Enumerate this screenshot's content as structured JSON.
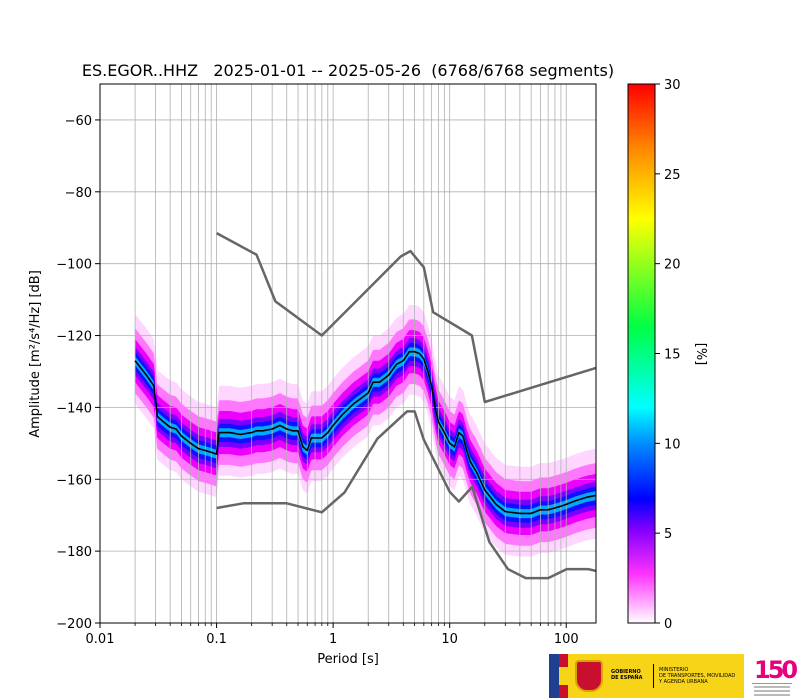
{
  "chart_data": {
    "type": "heatmap",
    "title": "ES.EGOR..HHZ   2025-01-01 -- 2025-05-26  (6768/6768 segments)",
    "xlabel": "Period [s]",
    "ylabel": "Amplitude [m²/s⁴/Hz] [dB]",
    "x_scale": "log",
    "xlim": [
      0.01,
      180
    ],
    "ylim": [
      -200,
      -50
    ],
    "x_ticks": [
      0.01,
      0.1,
      1,
      10,
      100
    ],
    "x_tick_labels": [
      "0.01",
      "0.1",
      "1",
      "10",
      "100"
    ],
    "y_ticks": [
      -200,
      -180,
      -160,
      -140,
      -120,
      -100,
      -80,
      -60
    ],
    "y_tick_labels": [
      "−200",
      "−180",
      "−160",
      "−140",
      "−120",
      "−100",
      "−80",
      "−60"
    ],
    "grid": true,
    "colorbar": {
      "label": "[%]",
      "range": [
        0,
        30
      ],
      "ticks": [
        0,
        5,
        10,
        15,
        20,
        25,
        30
      ],
      "tick_labels": [
        "0",
        "5",
        "10",
        "15",
        "20",
        "25",
        "30"
      ],
      "colormap": [
        "#ffffff",
        "#ff00ff",
        "#0000ff",
        "#00ffff",
        "#00ff00",
        "#ffff00",
        "#ff0000"
      ]
    },
    "series": [
      {
        "kind": "mode",
        "color": "#000000",
        "x": [
          0.02,
          0.025,
          0.029,
          0.031,
          0.035,
          0.04,
          0.045,
          0.05,
          0.06,
          0.07,
          0.08,
          0.09,
          0.1,
          0.105,
          0.13,
          0.16,
          0.2,
          0.22,
          0.25,
          0.3,
          0.35,
          0.4,
          0.45,
          0.5,
          0.55,
          0.6,
          0.65,
          0.8,
          0.9,
          1.0,
          1.2,
          1.5,
          2.0,
          2.2,
          2.5,
          3.0,
          3.5,
          4.0,
          4.5,
          5.0,
          5.5,
          6.0,
          6.5,
          7.0,
          7.5,
          8.0,
          9.0,
          10,
          11,
          12,
          13,
          14,
          15,
          17,
          20,
          25,
          30,
          40,
          50,
          60,
          70,
          80,
          90,
          100,
          120,
          150,
          180
        ],
        "y": [
          -127,
          -131,
          -134,
          -142.5,
          -144,
          -145.5,
          -146,
          -148,
          -150,
          -151.5,
          -152,
          -152.5,
          -153,
          -147,
          -147,
          -147.5,
          -147,
          -146.5,
          -146.5,
          -146,
          -145,
          -146,
          -146.5,
          -146.5,
          -151,
          -152,
          -148.5,
          -148.5,
          -147,
          -145,
          -142,
          -139,
          -136,
          -133,
          -133,
          -131,
          -128,
          -127,
          -124.5,
          -124.5,
          -125,
          -126.5,
          -130,
          -134,
          -140,
          -144,
          -147,
          -150,
          -151,
          -147,
          -148,
          -152,
          -155,
          -158,
          -163,
          -167,
          -169,
          -169.5,
          -169.5,
          -168.5,
          -168.5,
          -168,
          -167.5,
          -167,
          -166,
          -165,
          -164.5
        ]
      },
      {
        "kind": "model-high",
        "color": "#666666",
        "x": [
          0.1,
          0.22,
          0.32,
          0.8,
          3.8,
          4.6,
          6.0,
          7.2,
          15.5,
          20.0,
          180
        ],
        "y": [
          -91.5,
          -97.5,
          -110.5,
          -120,
          -98,
          -96.5,
          -101,
          -113.5,
          -120,
          -138.5,
          -129
        ]
      },
      {
        "kind": "model-low",
        "color": "#666666",
        "x": [
          0.1,
          0.17,
          0.4,
          0.8,
          1.25,
          2.4,
          4.3,
          5.0,
          6.0,
          10.0,
          12.0,
          15.6,
          21.9,
          31.6,
          45.0,
          70.0,
          101.0,
          154.0,
          180
        ],
        "y": [
          -168,
          -166.7,
          -166.7,
          -169.2,
          -163.7,
          -148.7,
          -141.1,
          -141.1,
          -149,
          -163.5,
          -166.2,
          -162.1,
          -177.5,
          -185.0,
          -187.5,
          -187.5,
          -185.0,
          -185.0,
          -185.5
        ]
      }
    ]
  },
  "logos": {
    "gov_line1": "GOBIERNO",
    "gov_line2": "DE ESPAÑA",
    "ministry_line1": "MINISTERIO",
    "ministry_line2": "DE TRANSPORTES, MOVILIDAD",
    "ministry_line3": "Y AGENDA URBANA",
    "anniv_number": "150"
  }
}
